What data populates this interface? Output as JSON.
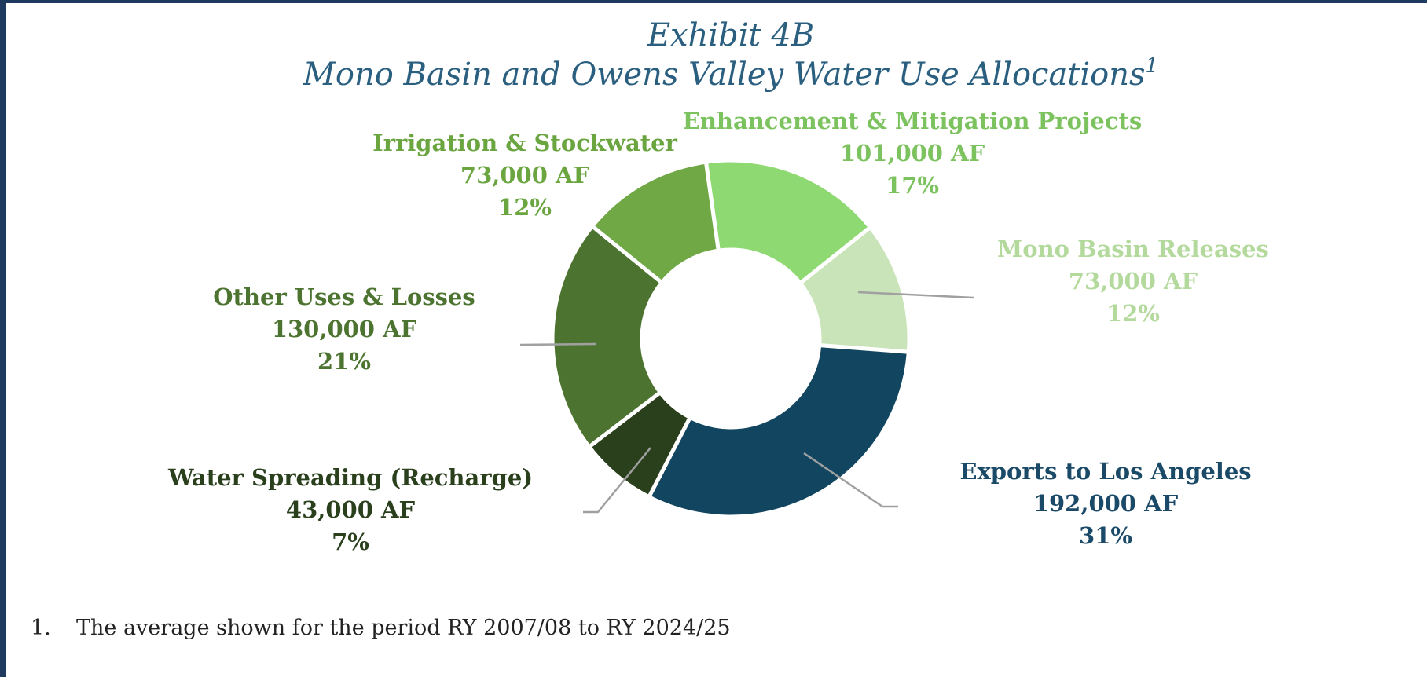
{
  "chart_data": {
    "type": "pie",
    "title": "Exhibit 4B",
    "subtitle": "Mono Basin and Owens Valley Water Use Allocations",
    "title_note": "1",
    "categories": [
      "Enhancement & Mitigation Projects",
      "Mono Basin Releases",
      "Exports to Los Angeles",
      "Water Spreading (Recharge)",
      "Other Uses & Losses",
      "Irrigation & Stockwater"
    ],
    "values": [
      101000,
      73000,
      192000,
      43000,
      130000,
      73000
    ],
    "value_labels": [
      "101,000 AF",
      "73,000 AF",
      "192,000 AF",
      "43,000 AF",
      "130,000 AF",
      "73,000 AF"
    ],
    "percent_labels": [
      "17%",
      "12%",
      "31%",
      "7%",
      "21%",
      "12%"
    ],
    "colors": [
      "#8fd972",
      "#c8e4b8",
      "#124560",
      "#2a3f1c",
      "#4c7430",
      "#70a845"
    ],
    "label_colors": [
      "#7cc25e",
      "#b3d99c",
      "#1b4a68",
      "#2a3f1c",
      "#4c7430",
      "#6aa540"
    ]
  },
  "footnote": {
    "number": "1.",
    "text": "The average shown for the period RY 2007/08 to RY 2024/25"
  }
}
